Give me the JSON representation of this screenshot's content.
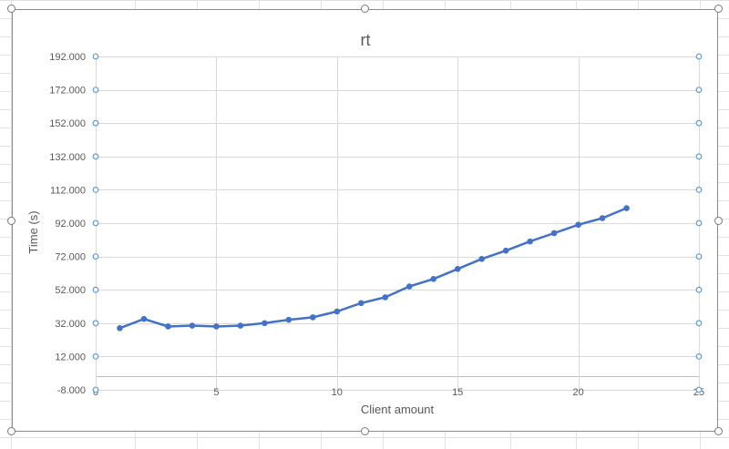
{
  "chart_data": {
    "type": "line",
    "title": "rt",
    "xlabel": "Client amount",
    "ylabel": "Time (s)",
    "xlim": [
      0,
      25
    ],
    "ylim": [
      -8,
      192
    ],
    "x_ticks": [
      0,
      5,
      10,
      15,
      20,
      25
    ],
    "x_tick_labels": [
      "0",
      "5",
      "10",
      "15",
      "20",
      "25"
    ],
    "y_ticks": [
      -8,
      12,
      32,
      52,
      72,
      92,
      112,
      132,
      152,
      172,
      192
    ],
    "y_tick_labels": [
      "-8.000",
      "12.000",
      "32.000",
      "52.000",
      "72.000",
      "92.000",
      "112.000",
      "132.000",
      "152.000",
      "172.000",
      "192.000"
    ],
    "grid": true,
    "series": [
      {
        "x": [
          1,
          2,
          3,
          4,
          5,
          6,
          7,
          8,
          9,
          10,
          11,
          12,
          13,
          14,
          15,
          16,
          17,
          18,
          19,
          20,
          21,
          22
        ],
        "values": [
          29,
          34.5,
          30,
          30.5,
          30,
          30.5,
          32,
          34,
          35.5,
          39,
          44,
          47.5,
          54,
          58.5,
          64.5,
          70.5,
          75.5,
          81,
          86,
          91,
          95,
          101
        ],
        "color": "#4472c4"
      }
    ]
  }
}
